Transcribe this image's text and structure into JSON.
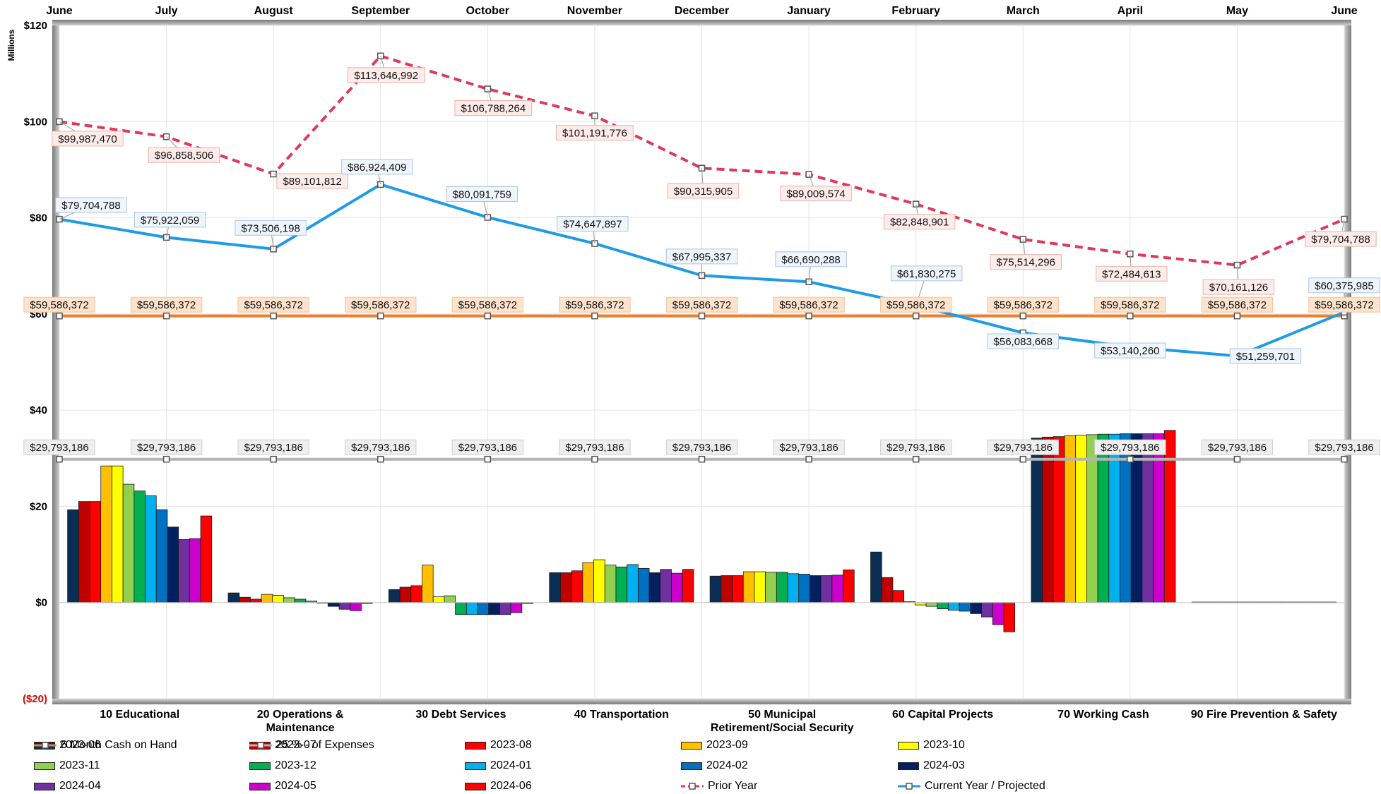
{
  "chart_data": [
    {
      "type": "line",
      "ylabel": "Millions",
      "ylim": [
        -20,
        120
      ],
      "yticks": [
        "$120",
        "$100",
        "$80",
        "$60",
        "$40",
        "$20",
        "$0",
        "($20)"
      ],
      "ytick_values": [
        120,
        100,
        80,
        60,
        40,
        20,
        0,
        -20
      ],
      "x": [
        "June",
        "July",
        "August",
        "September",
        "October",
        "November",
        "December",
        "January",
        "February",
        "March",
        "April",
        "May",
        "June"
      ],
      "grid": true,
      "series": [
        {
          "name": "Prior Year",
          "color": "#e0385c",
          "style": "dashed",
          "values": [
            99.98747,
            96.858506,
            89.101812,
            113.646992,
            106.788264,
            101.191776,
            90.315905,
            89.009574,
            82.848901,
            75.514296,
            72.484613,
            70.161126,
            79.704788
          ],
          "labels": [
            "$99,987,470",
            "$96,858,506",
            "$89,101,812",
            "$113,646,992",
            "$106,788,264",
            "$101,191,776",
            "$90,315,905",
            "$89,009,574",
            "$82,848,901",
            "$75,514,296",
            "$72,484,613",
            "$70,161,126",
            "$79,704,788"
          ]
        },
        {
          "name": "Current Year / Projected",
          "color": "#1e9be6",
          "style": "solid",
          "values": [
            79.704788,
            75.922059,
            73.506198,
            86.924409,
            80.091759,
            74.647897,
            67.995337,
            66.690288,
            61.830275,
            56.083668,
            53.14026,
            51.259701,
            60.375985
          ],
          "labels": [
            "$79,704,788",
            "$75,922,059",
            "$73,506,198",
            "$86,924,409",
            "$80,091,759",
            "$74,647,897",
            "$67,995,337",
            "$66,690,288",
            "$61,830,275",
            "$56,083,668",
            "$53,140,260",
            "$51,259,701",
            "$60,375,985"
          ]
        },
        {
          "name": "6 Month Cash on Hand",
          "color": "#f07d2a",
          "style": "solid",
          "values": [
            59.586372,
            59.586372,
            59.586372,
            59.586372,
            59.586372,
            59.586372,
            59.586372,
            59.586372,
            59.586372,
            59.586372,
            59.586372,
            59.586372,
            59.586372
          ],
          "labels": [
            "$59,586,372",
            "$59,586,372",
            "$59,586,372",
            "$59,586,372",
            "$59,586,372",
            "$59,586,372",
            "$59,586,372",
            "$59,586,372",
            "$59,586,372",
            "$59,586,372",
            "$59,586,372",
            "$59,586,372",
            "$59,586,372"
          ]
        },
        {
          "name": "25 % - of Expenses",
          "color": "#b4b4b4",
          "style": "solid",
          "values": [
            29.793186,
            29.793186,
            29.793186,
            29.793186,
            29.793186,
            29.793186,
            29.793186,
            29.793186,
            29.793186,
            29.793186,
            29.793186,
            29.793186,
            29.793186
          ],
          "labels": [
            "$29,793,186",
            "$29,793,186",
            "$29,793,186",
            "$29,793,186",
            "$29,793,186",
            "$29,793,186",
            "$29,793,186",
            "$29,793,186",
            "$29,793,186",
            "$29,793,186",
            "$29,793,186",
            "$29,793,186",
            "$29,793,186"
          ]
        }
      ]
    },
    {
      "type": "bar",
      "ylim": [
        -20,
        120
      ],
      "categories": [
        "10 Educational",
        "20 Operations & Maintenance",
        "30 Debt Services",
        "40 Transportation",
        "50 Municipal Retirement/Social Security",
        "60 Capital Projects",
        "70 Working Cash",
        "90 Fire Prevention & Safety"
      ],
      "category_labels": [
        [
          "10 Educational"
        ],
        [
          "20 Operations &",
          "Maintenance"
        ],
        [
          "30 Debt Services"
        ],
        [
          "40 Transportation"
        ],
        [
          "50 Municipal",
          "Retirement/Social Security"
        ],
        [
          "60 Capital Projects"
        ],
        [
          "70 Working Cash"
        ],
        [
          "90 Fire Prevention & Safety"
        ]
      ],
      "series": [
        {
          "name": "2023-06",
          "color": "#0b2e55",
          "values": [
            19.3,
            2.0,
            2.7,
            6.2,
            5.5,
            10.5,
            34.2,
            0.1
          ]
        },
        {
          "name": "2023-07",
          "color": "#c00000",
          "values": [
            21.0,
            1.1,
            3.2,
            6.2,
            5.6,
            5.2,
            34.4,
            0.1
          ]
        },
        {
          "name": "2023-08",
          "color": "#ff0000",
          "values": [
            21.0,
            0.7,
            3.5,
            6.6,
            5.6,
            2.5,
            34.5,
            0.1
          ]
        },
        {
          "name": "2023-09",
          "color": "#ffc000",
          "values": [
            28.4,
            1.7,
            7.8,
            8.3,
            6.4,
            0.2,
            34.7,
            0.1
          ]
        },
        {
          "name": "2023-10",
          "color": "#ffff00",
          "values": [
            28.4,
            1.5,
            1.2,
            8.9,
            6.4,
            -0.5,
            34.8,
            0.1
          ]
        },
        {
          "name": "2023-11",
          "color": "#92d050",
          "values": [
            24.6,
            1.0,
            1.4,
            7.8,
            6.3,
            -0.8,
            34.9,
            0.1
          ]
        },
        {
          "name": "2023-12",
          "color": "#00b050",
          "values": [
            23.2,
            0.7,
            -2.5,
            7.4,
            6.3,
            -1.3,
            35.0,
            0.1
          ]
        },
        {
          "name": "2024-01",
          "color": "#00b0f0",
          "values": [
            22.2,
            0.3,
            -2.5,
            7.9,
            6.0,
            -1.6,
            35.0,
            0.1
          ]
        },
        {
          "name": "2024-02",
          "color": "#0070c0",
          "values": [
            19.3,
            0.0,
            -2.5,
            7.1,
            5.9,
            -1.8,
            35.1,
            0.1
          ]
        },
        {
          "name": "2024-03",
          "color": "#002060",
          "values": [
            15.7,
            -0.8,
            -2.5,
            6.2,
            5.6,
            -2.3,
            35.1,
            0.1
          ]
        },
        {
          "name": "2024-04",
          "color": "#7030a0",
          "values": [
            13.1,
            -1.4,
            -2.5,
            6.9,
            5.6,
            -3.0,
            35.1,
            0.1
          ]
        },
        {
          "name": "2024-05",
          "color": "#cc00cc",
          "values": [
            13.3,
            -1.7,
            -2.1,
            6.1,
            5.7,
            -4.6,
            35.1,
            0.1
          ]
        },
        {
          "name": "2024-06",
          "color": "#ff0000",
          "values": [
            18.0,
            -0.2,
            -0.2,
            6.9,
            6.8,
            -6.1,
            35.8,
            0.1
          ]
        }
      ]
    }
  ]
}
